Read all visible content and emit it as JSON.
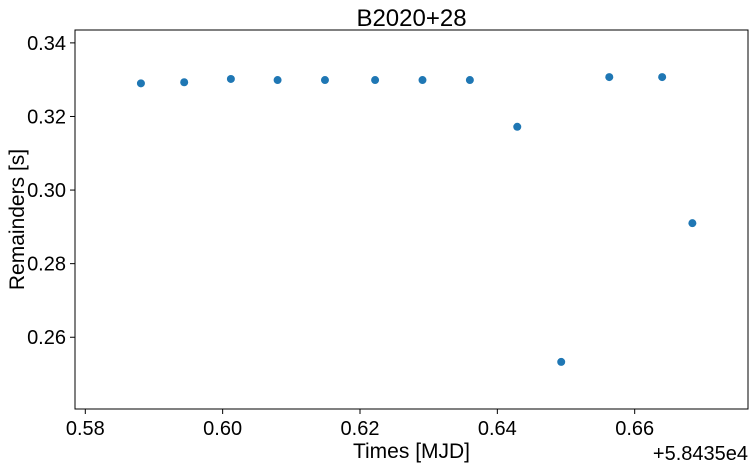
{
  "chart_data": {
    "type": "scatter",
    "title": "B2020+28",
    "xlabel": "Times [MJD]",
    "ylabel": "Remainders [s]",
    "x_offset_label": "+5.8435e4",
    "xlim": [
      0.5785,
      0.6765
    ],
    "ylim": [
      0.2405,
      0.3435
    ],
    "xticks": [
      0.58,
      0.6,
      0.62,
      0.64,
      0.66
    ],
    "xtick_labels": [
      "0.58",
      "0.60",
      "0.62",
      "0.64",
      "0.66"
    ],
    "yticks": [
      0.26,
      0.28,
      0.3,
      0.32,
      0.34
    ],
    "ytick_labels": [
      "0.26",
      "0.28",
      "0.30",
      "0.32",
      "0.34"
    ],
    "grid": false,
    "marker_color": "#1f77b4",
    "series": [
      {
        "x": [
          0.5881,
          0.5944,
          0.6012,
          0.608,
          0.6149,
          0.6222,
          0.6291,
          0.636,
          0.6429,
          0.6493,
          0.6563,
          0.664,
          0.6684
        ],
        "y": [
          0.329,
          0.3293,
          0.3302,
          0.3299,
          0.3299,
          0.3299,
          0.3299,
          0.3299,
          0.3172,
          0.2533,
          0.3307,
          0.3307,
          0.291
        ]
      }
    ]
  }
}
